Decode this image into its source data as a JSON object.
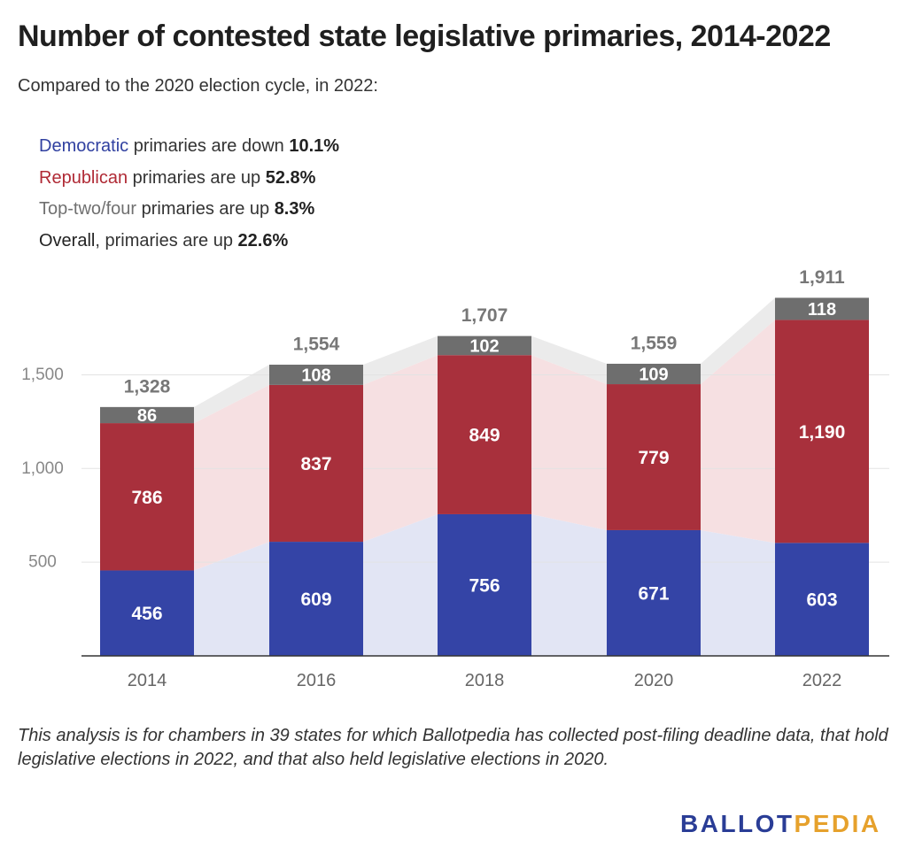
{
  "title": "Number of contested state legislative primaries, 2014-2022",
  "subtitle": "Compared to the 2020 election cycle, in 2022:",
  "summary": {
    "democratic": {
      "label": "Democratic",
      "text": " primaries are down ",
      "value": "10.1%"
    },
    "republican": {
      "label": "Republican",
      "text": " primaries are up ",
      "value": "52.8%"
    },
    "toptwo": {
      "label": "Top-two/four",
      "text": " primaries are up ",
      "value": "8.3%"
    },
    "overall": {
      "label": "Overall",
      "text": ", primaries are up ",
      "value": "22.6%"
    }
  },
  "colors": {
    "democratic": "#3444a6",
    "republican": "#a8303c",
    "toptwo": "#6e6e6e",
    "dem_band": "#e2e5f4",
    "rep_band": "#f6e0e2",
    "top_band": "#ebebeb",
    "total_label": "#777777",
    "axis_label": "#888888"
  },
  "chart_data": {
    "type": "bar",
    "stacked": true,
    "categories": [
      "2014",
      "2016",
      "2018",
      "2020",
      "2022"
    ],
    "series": [
      {
        "name": "Democratic",
        "values": [
          456,
          609,
          756,
          671,
          603
        ]
      },
      {
        "name": "Republican",
        "values": [
          786,
          837,
          849,
          779,
          1190
        ]
      },
      {
        "name": "Top-two/four",
        "values": [
          86,
          108,
          102,
          109,
          118
        ]
      }
    ],
    "totals": [
      1328,
      1554,
      1707,
      1559,
      1911
    ],
    "value_labels": [
      [
        "456",
        "609",
        "756",
        "671",
        "603"
      ],
      [
        "786",
        "837",
        "849",
        "779",
        "1,190"
      ],
      [
        "86",
        "108",
        "102",
        "109",
        "118"
      ]
    ],
    "total_labels": [
      "1,328",
      "1,554",
      "1,707",
      "1,559",
      "1,911"
    ],
    "y_ticks": [
      500,
      1000,
      1500
    ],
    "y_tick_labels": [
      "500",
      "1,000",
      "1,500"
    ],
    "ylim": [
      0,
      1911
    ],
    "grid": true,
    "xlabel": "",
    "ylabel": ""
  },
  "note": "This analysis is for chambers in 39 states for which Ballotpedia has collected post-filing deadline data, that hold legislative elections in 2022, and that also held legislative elections in 2020.",
  "logo": {
    "part1": "BALLOT",
    "part2": "PEDIA"
  }
}
